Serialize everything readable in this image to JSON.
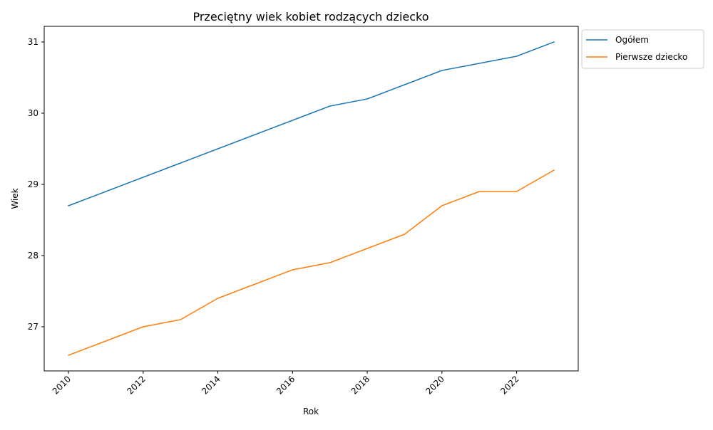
{
  "chart_data": {
    "type": "line",
    "title": "Przeciętny wiek kobiet rodzących dziecko",
    "xlabel": "Rok",
    "ylabel": "Wiek",
    "x": [
      2010,
      2011,
      2012,
      2013,
      2014,
      2015,
      2016,
      2017,
      2018,
      2019,
      2020,
      2021,
      2022,
      2023
    ],
    "series": [
      {
        "name": "Ogółem",
        "color": "#1f77b4",
        "values": [
          28.7,
          28.9,
          29.1,
          29.3,
          29.5,
          29.7,
          29.9,
          30.1,
          30.2,
          30.4,
          30.6,
          30.7,
          30.8,
          31.0
        ]
      },
      {
        "name": "Pierwsze dziecko",
        "color": "#ff7f0e",
        "values": [
          26.6,
          26.8,
          27.0,
          27.1,
          27.4,
          27.6,
          27.8,
          27.9,
          28.1,
          28.3,
          28.7,
          28.9,
          28.9,
          29.2
        ]
      }
    ],
    "xlim": [
      2009.35,
      2023.65
    ],
    "ylim": [
      26.38,
      31.22
    ],
    "xticks": [
      2010,
      2012,
      2014,
      2016,
      2018,
      2020,
      2022
    ],
    "yticks": [
      27,
      28,
      29,
      30,
      31
    ],
    "grid": false,
    "legend": "outside-top-right"
  }
}
